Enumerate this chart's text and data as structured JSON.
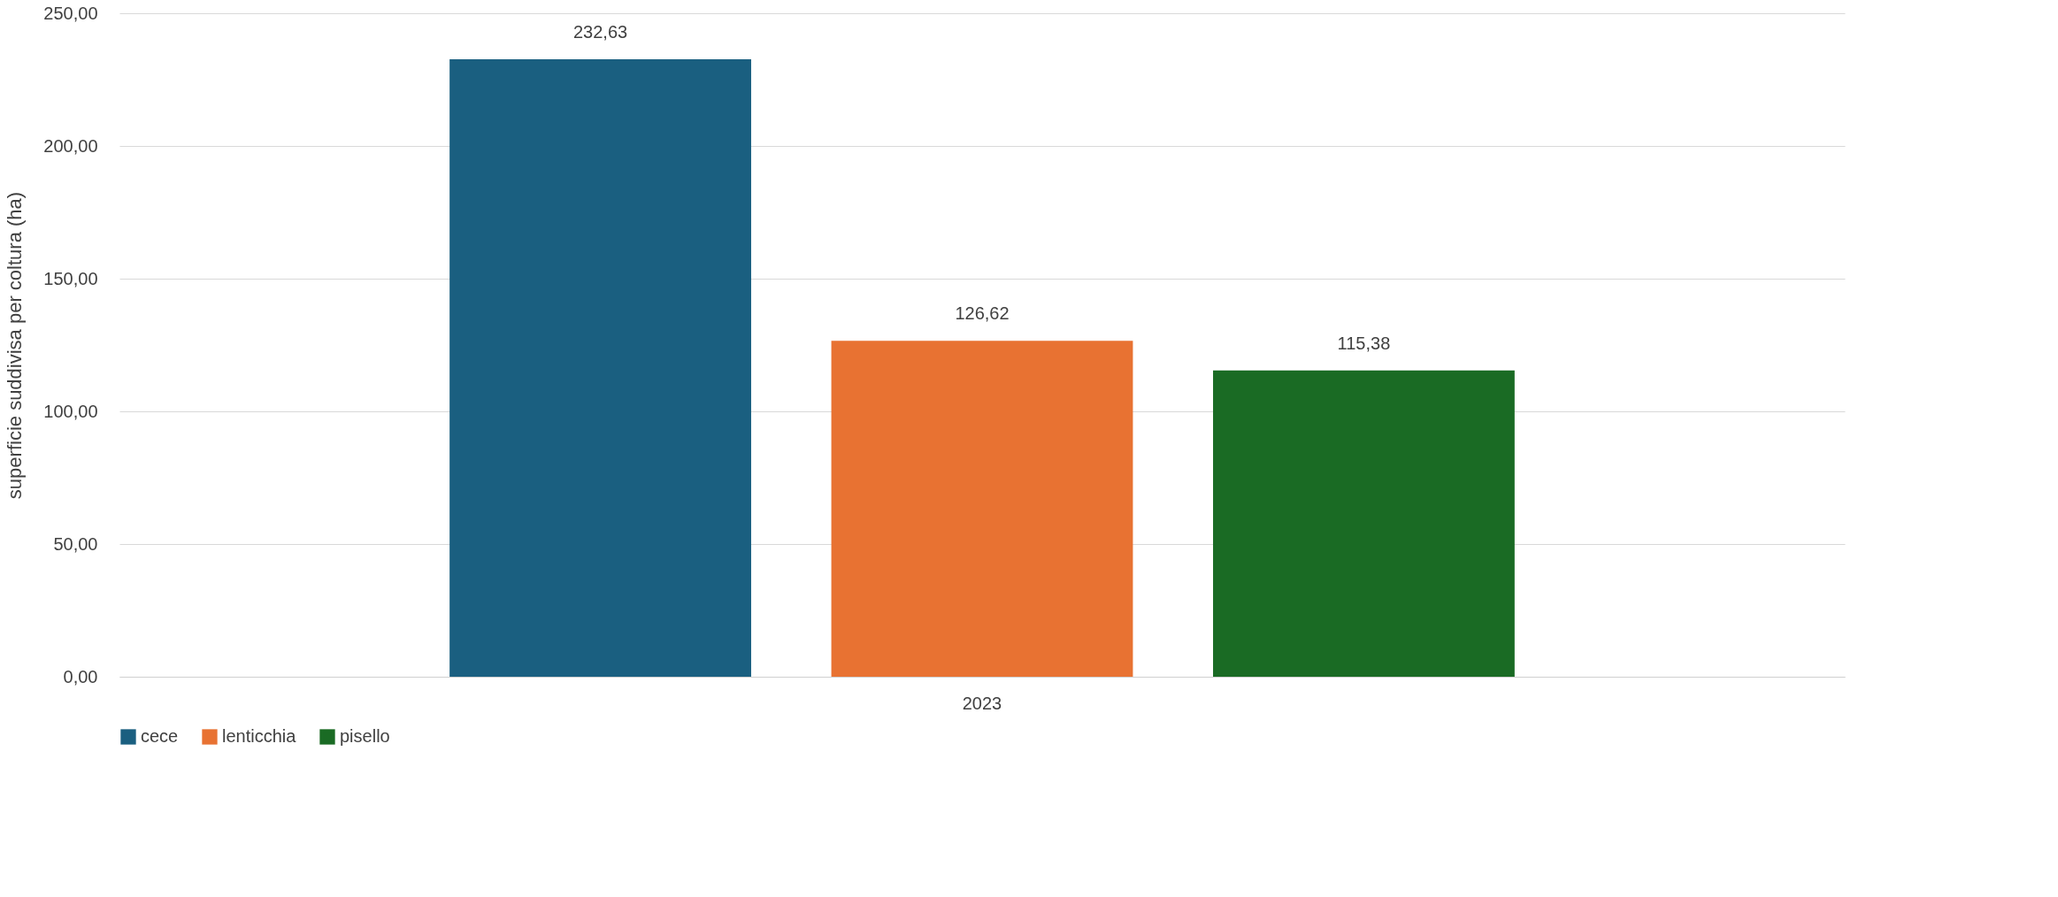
{
  "chart_data": {
    "type": "bar",
    "ylabel": "superficie suddivisa per coltura (ha)",
    "categories": [
      "2023"
    ],
    "series": [
      {
        "name": "cece",
        "color": "#1a5f80",
        "values": [
          232.63
        ],
        "value_labels": [
          "232,63"
        ]
      },
      {
        "name": "lenticchia",
        "color": "#e87232",
        "values": [
          126.62
        ],
        "value_labels": [
          "126,62"
        ]
      },
      {
        "name": "pisello",
        "color": "#1a6b24",
        "values": [
          115.38
        ],
        "value_labels": [
          "115,38"
        ]
      }
    ],
    "ylim": [
      0,
      250
    ],
    "yticks": [
      {
        "value": 0,
        "label": "0,00"
      },
      {
        "value": 50,
        "label": "50,00"
      },
      {
        "value": 100,
        "label": "100,00"
      },
      {
        "value": 150,
        "label": "150,00"
      },
      {
        "value": 200,
        "label": "200,00"
      },
      {
        "value": 250,
        "label": "250,00"
      }
    ],
    "grid": "y",
    "legend": "bottom"
  }
}
